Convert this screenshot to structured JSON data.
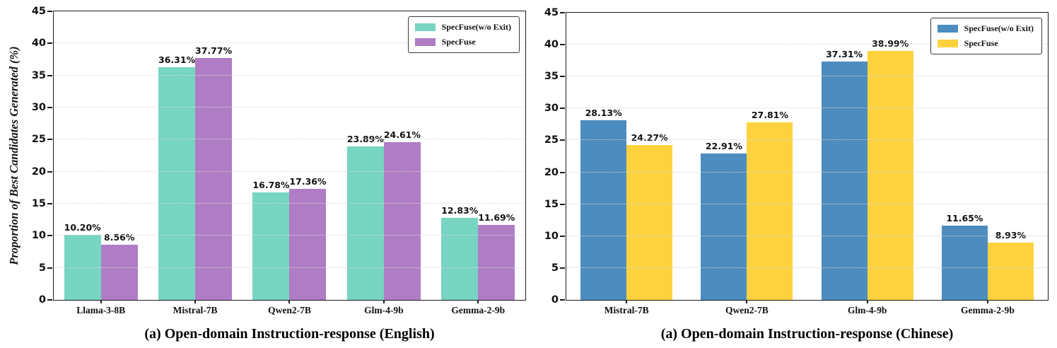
{
  "chart_data": [
    {
      "type": "bar",
      "caption": "(a) Open-domain Instruction-response (English)",
      "ylabel": "Proportion of Best Candidates Generated (%)",
      "xlabel": "",
      "ylim": [
        0,
        45
      ],
      "yticks": [
        0,
        5,
        10,
        15,
        20,
        25,
        30,
        35,
        40,
        45
      ],
      "grid": "horizontal-dotted",
      "legend_position": "upper-right",
      "categories": [
        "Llama-3-8B",
        "Mistral-7B",
        "Qwen2-7B",
        "Glm-4-9b",
        "Gemma-2-9b"
      ],
      "series": [
        {
          "name": "SpecFuse(w/o Exit)",
          "color": "#77D5C2",
          "values": [
            10.2,
            36.31,
            16.78,
            23.89,
            12.83
          ],
          "labels": [
            "10.20%",
            "36.31%",
            "16.78%",
            "23.89%",
            "12.83%"
          ]
        },
        {
          "name": "SpecFuse",
          "color": "#AF7CC5",
          "values": [
            8.56,
            37.77,
            17.36,
            24.61,
            11.69
          ],
          "labels": [
            "8.56%",
            "37.77%",
            "17.36%",
            "24.61%",
            "11.69%"
          ]
        }
      ]
    },
    {
      "type": "bar",
      "caption": "(a) Open-domain Instruction-response (Chinese)",
      "ylabel": "",
      "xlabel": "",
      "ylim": [
        0,
        45
      ],
      "yticks": [
        0,
        5,
        10,
        15,
        20,
        25,
        30,
        35,
        40,
        45
      ],
      "grid": "horizontal-dotted",
      "legend_position": "upper-right",
      "categories": [
        "Mistral-7B",
        "Qwen2-7B",
        "Glm-4-9b",
        "Gemma-2-9b"
      ],
      "series": [
        {
          "name": "SpecFuse(w/o Exit)",
          "color": "#4C8CBE",
          "values": [
            28.13,
            22.91,
            37.31,
            11.65
          ],
          "labels": [
            "28.13%",
            "22.91%",
            "37.31%",
            "11.65%"
          ]
        },
        {
          "name": "SpecFuse",
          "color": "#FDD23E",
          "values": [
            24.27,
            27.81,
            38.99,
            8.93
          ],
          "labels": [
            "24.27%",
            "27.81%",
            "38.99%",
            "8.93%"
          ]
        }
      ]
    }
  ]
}
